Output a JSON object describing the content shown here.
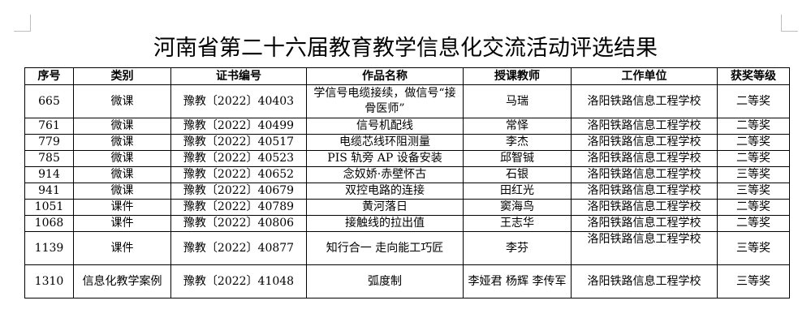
{
  "title": "河南省第二十六届教育教学信息化交流活动评选结果",
  "headers": [
    "序号",
    "类别",
    "证书编号",
    "作品名称",
    "授课教师",
    "工作单位",
    "获奖等级"
  ],
  "rows": [
    [
      "665",
      "微课",
      "豫教〔2022〕40403",
      "学信号电缆接续，做信号“接骨医师”",
      "马瑞",
      "洛阳铁路信息工程学校",
      "二等奖"
    ],
    [
      "761",
      "微课",
      "豫教〔2022〕40499",
      "信号机配线",
      "常怿",
      "洛阳铁路信息工程学校",
      "二等奖"
    ],
    [
      "779",
      "微课",
      "豫教〔2022〕40517",
      "电缆芯线环阻测量",
      "李杰",
      "洛阳铁路信息工程学校",
      "二等奖"
    ],
    [
      "785",
      "微课",
      "豫教〔2022〕40523",
      "PIS 轨旁 AP 设备安装",
      "邱智铖",
      "洛阳铁路信息工程学校",
      "二等奖"
    ],
    [
      "914",
      "微课",
      "豫教〔2022〕40652",
      "念奴娇·赤壁怀古",
      "石银",
      "洛阳铁路信息工程学校",
      "三等奖"
    ],
    [
      "941",
      "微课",
      "豫教〔2022〕40679",
      "双控电路的连接",
      "田红光",
      "洛阳铁路信息工程学校",
      "三等奖"
    ],
    [
      "1051",
      "课件",
      "豫教〔2022〕40789",
      "黄河落日",
      "窦海鸟",
      "洛阳铁路信息工程学校",
      "二等奖"
    ],
    [
      "1068",
      "课件",
      "豫教〔2022〕40806",
      "接触线的拉出值",
      "王志华",
      "洛阳铁路信息工程学校",
      "二等奖"
    ],
    [
      "1139",
      "课件",
      "豫教〔2022〕40877",
      "知行合一 走向能工巧匠",
      "李芬",
      "洛阳铁路信息工程学校",
      "三等奖"
    ],
    [
      "1310",
      "信息化教学案例",
      "豫教〔2022〕41048",
      "弧度制",
      "李娅君 杨辉 李传军",
      "洛阳铁路信息工程学校",
      "三等奖"
    ]
  ]
}
